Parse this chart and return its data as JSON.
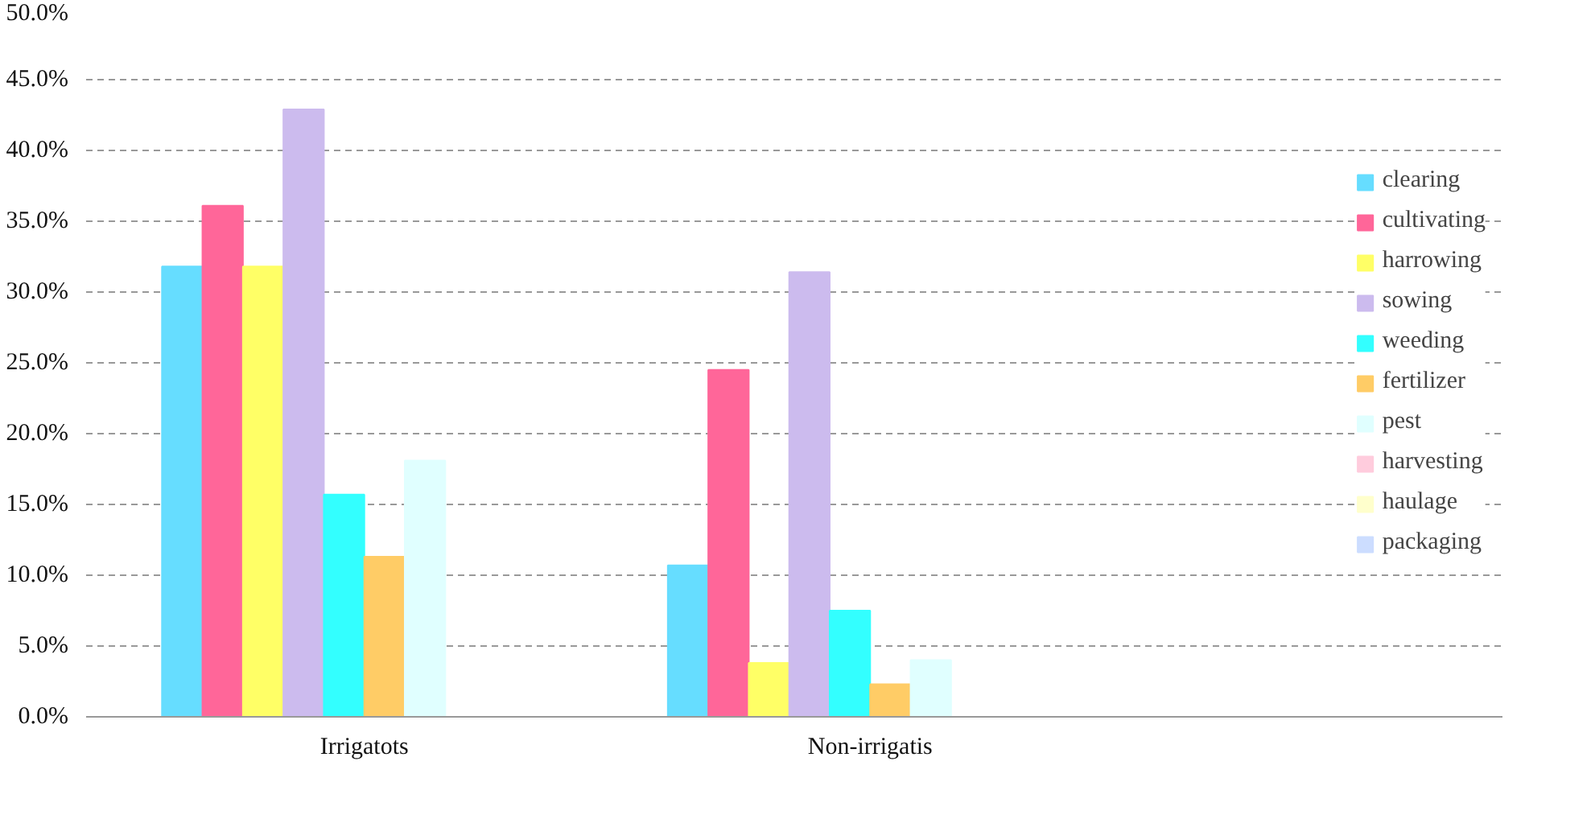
{
  "chart_data": {
    "type": "bar",
    "categories": [
      "Irrigatots",
      "Non-irrigatis"
    ],
    "series": [
      {
        "name": "clearing",
        "color": "#66ddff",
        "values": [
          31.8,
          10.7
        ]
      },
      {
        "name": "cultivating",
        "color": "#ff6699",
        "values": [
          36.1,
          24.5
        ]
      },
      {
        "name": "harrowing",
        "color": "#ffff66",
        "values": [
          31.8,
          3.8
        ]
      },
      {
        "name": "sowing",
        "color": "#ccbbee",
        "values": [
          42.9,
          31.4
        ]
      },
      {
        "name": "weeding",
        "color": "#33ffff",
        "values": [
          15.7,
          7.5
        ]
      },
      {
        "name": "fertilizer",
        "color": "#ffcc66",
        "values": [
          11.3,
          2.3
        ]
      },
      {
        "name": "pest",
        "color": "#e0ffff",
        "values": [
          18.1,
          4.0
        ]
      },
      {
        "name": "harvesting",
        "color": "#ffccdd",
        "values": [
          0,
          0
        ]
      },
      {
        "name": "haulage",
        "color": "#ffffcc",
        "values": [
          0,
          0
        ]
      },
      {
        "name": "packaging",
        "color": "#ccddff",
        "values": [
          0,
          0
        ]
      }
    ],
    "ylim": [
      0,
      50
    ],
    "yticks": [
      {
        "value": 0,
        "label": "0.0%"
      },
      {
        "value": 5,
        "label": "5.0%"
      },
      {
        "value": 10,
        "label": "10.0%"
      },
      {
        "value": 15,
        "label": "15.0%"
      },
      {
        "value": 20,
        "label": "20.0%"
      },
      {
        "value": 25,
        "label": "25.0%"
      },
      {
        "value": 30,
        "label": "30.0%"
      },
      {
        "value": 35,
        "label": "35.0%"
      },
      {
        "value": 40,
        "label": "40.0%"
      },
      {
        "value": 45,
        "label": "45.0%"
      },
      {
        "value": 50,
        "label": "50.0%"
      }
    ],
    "grid": "y",
    "legend": "right"
  }
}
